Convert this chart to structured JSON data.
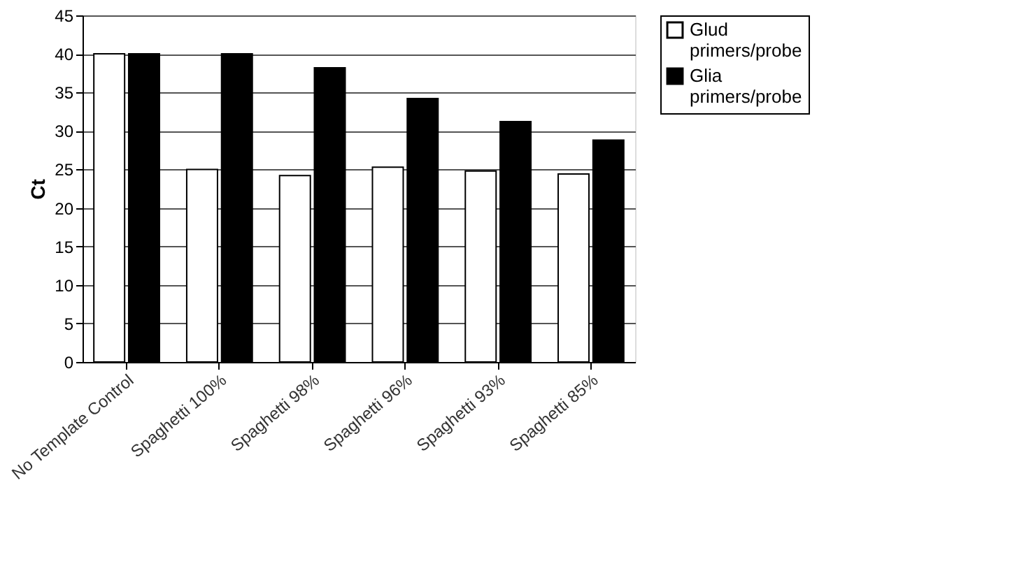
{
  "chart_data": {
    "type": "bar",
    "ylabel": "Ct",
    "categories": [
      "No Template Control",
      "Spaghetti 100%",
      "Spaghetti 98%",
      "Spaghetti 96%",
      "Spaghetti 93%",
      "Spaghetti 85%"
    ],
    "series": [
      {
        "name": "Glud primers/probe",
        "color": "#ffffff",
        "values": [
          40,
          25,
          24.2,
          25.3,
          24.8,
          24.4
        ]
      },
      {
        "name": "Glia primers/probe",
        "color": "#000000",
        "values": [
          40,
          40,
          38.2,
          34.2,
          31.2,
          28.8
        ]
      }
    ],
    "ylim": [
      0,
      45
    ],
    "yticks": [
      0,
      5,
      10,
      15,
      20,
      25,
      30,
      35,
      40,
      45
    ],
    "grid": "y",
    "legend": "right"
  }
}
